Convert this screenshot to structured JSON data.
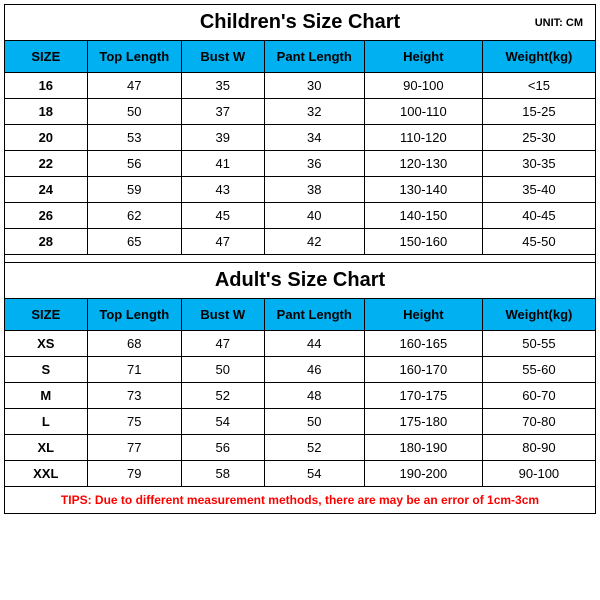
{
  "children": {
    "title": "Children's Size Chart",
    "unit": "UNIT: CM",
    "headers": [
      "SIZE",
      "Top Length",
      "Bust W",
      "Pant Length",
      "Height",
      "Weight(kg)"
    ],
    "header_bg": "#00b0f0",
    "rows": [
      [
        "16",
        "47",
        "35",
        "30",
        "90-100",
        "<15"
      ],
      [
        "18",
        "50",
        "37",
        "32",
        "100-110",
        "15-25"
      ],
      [
        "20",
        "53",
        "39",
        "34",
        "110-120",
        "25-30"
      ],
      [
        "22",
        "56",
        "41",
        "36",
        "120-130",
        "30-35"
      ],
      [
        "24",
        "59",
        "43",
        "38",
        "130-140",
        "35-40"
      ],
      [
        "26",
        "62",
        "45",
        "40",
        "140-150",
        "40-45"
      ],
      [
        "28",
        "65",
        "47",
        "42",
        "150-160",
        "45-50"
      ]
    ]
  },
  "adult": {
    "title": "Adult's Size Chart",
    "headers": [
      "SIZE",
      "Top Length",
      "Bust W",
      "Pant Length",
      "Height",
      "Weight(kg)"
    ],
    "header_bg": "#00b0f0",
    "rows": [
      [
        "XS",
        "68",
        "47",
        "44",
        "160-165",
        "50-55"
      ],
      [
        "S",
        "71",
        "50",
        "46",
        "160-170",
        "55-60"
      ],
      [
        "M",
        "73",
        "52",
        "48",
        "170-175",
        "60-70"
      ],
      [
        "L",
        "75",
        "54",
        "50",
        "175-180",
        "70-80"
      ],
      [
        "XL",
        "77",
        "56",
        "52",
        "180-190",
        "80-90"
      ],
      [
        "XXL",
        "79",
        "58",
        "54",
        "190-200",
        "90-100"
      ]
    ]
  },
  "tips": {
    "text": "TIPS: Due to different measurement methods, there are may be an error of 1cm-3cm",
    "color": "#ff0000"
  },
  "col_classes": [
    "c0",
    "c1",
    "c2",
    "c3",
    "c4",
    "c5"
  ]
}
